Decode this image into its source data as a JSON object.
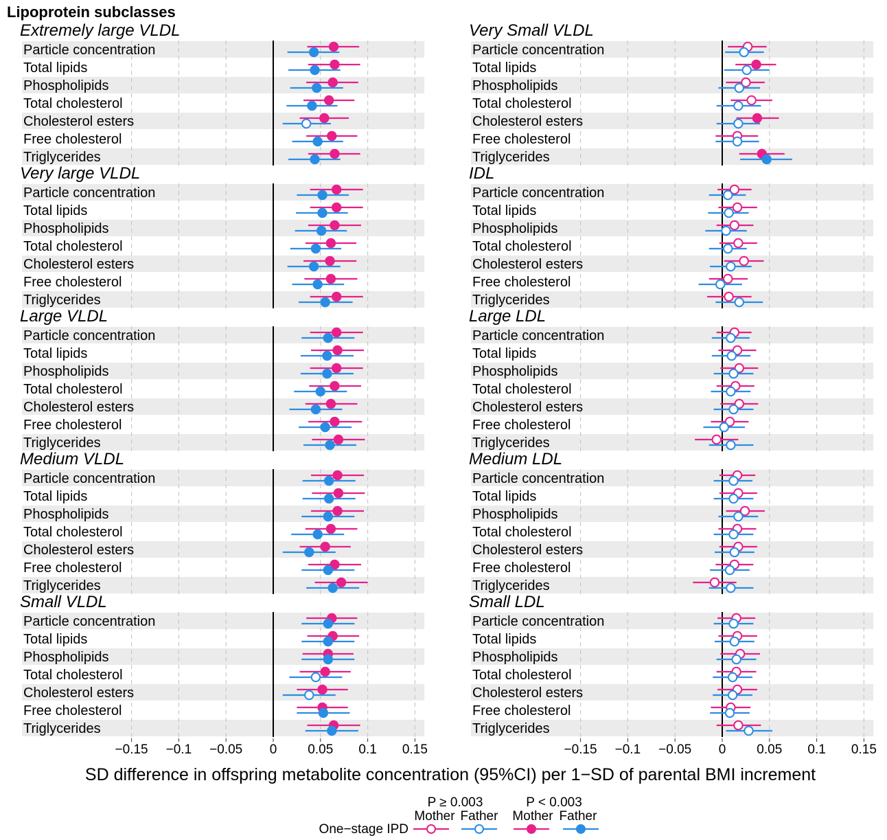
{
  "title": "Lipoprotein subclasses",
  "x_axis_label": "SD difference in offspring metabolite concentration (95%CI) per 1−SD of parental BMI increment",
  "legend": {
    "group_title": "One−stage IPD",
    "header_nonsig": "P ≥ 0.003",
    "header_sig": "P < 0.003",
    "mother": "Mother",
    "father": "Father"
  },
  "colors": {
    "mother": "#e8208a",
    "father": "#2a8de4",
    "stripe": "#ebebeb",
    "grid": "#c8c8c8",
    "zero": "#000000"
  },
  "chart_data": {
    "type": "forest",
    "xlim": [
      -0.15,
      0.16
    ],
    "x_ticks": [
      -0.15,
      -0.1,
      -0.05,
      0,
      0.05,
      0.1,
      0.15
    ],
    "x_tick_labels": [
      "−0.15",
      "−0.1",
      "−0.05",
      "0",
      "0.05",
      "0.1",
      "0.15"
    ],
    "grid": "dashed vertical",
    "rows": [
      "Particle concentration",
      "Total lipids",
      "Phospholipids",
      "Total cholesterol",
      "Cholesterol esters",
      "Free cholesterol",
      "Triglycerides"
    ],
    "panels": [
      {
        "title": "Extremely large VLDL",
        "mother": [
          [
            0.064,
            0.036,
            0.091,
            1
          ],
          [
            0.065,
            0.037,
            0.092,
            1
          ],
          [
            0.063,
            0.035,
            0.09,
            1
          ],
          [
            0.059,
            0.032,
            0.086,
            1
          ],
          [
            0.054,
            0.028,
            0.08,
            1
          ],
          [
            0.062,
            0.035,
            0.089,
            1
          ],
          [
            0.065,
            0.037,
            0.092,
            1
          ]
        ],
        "father": [
          [
            0.043,
            0.015,
            0.07,
            1
          ],
          [
            0.044,
            0.016,
            0.071,
            1
          ],
          [
            0.046,
            0.018,
            0.074,
            1
          ],
          [
            0.041,
            0.014,
            0.068,
            1
          ],
          [
            0.035,
            0.01,
            0.061,
            0
          ],
          [
            0.047,
            0.02,
            0.074,
            1
          ],
          [
            0.044,
            0.016,
            0.071,
            1
          ]
        ]
      },
      {
        "title": "Very Small VLDL",
        "mother": [
          [
            0.027,
            0.006,
            0.047,
            0
          ],
          [
            0.036,
            0.014,
            0.057,
            1
          ],
          [
            0.025,
            0.004,
            0.045,
            0
          ],
          [
            0.031,
            0.009,
            0.053,
            0
          ],
          [
            0.037,
            0.015,
            0.06,
            1
          ],
          [
            0.016,
            -0.007,
            0.038,
            0
          ],
          [
            0.042,
            0.018,
            0.066,
            1
          ]
        ],
        "father": [
          [
            0.023,
            0.003,
            0.044,
            0
          ],
          [
            0.026,
            0.002,
            0.05,
            0
          ],
          [
            0.018,
            -0.004,
            0.04,
            0
          ],
          [
            0.017,
            -0.006,
            0.041,
            0
          ],
          [
            0.017,
            -0.006,
            0.04,
            0
          ],
          [
            0.016,
            -0.007,
            0.039,
            0
          ],
          [
            0.047,
            0.019,
            0.074,
            1
          ]
        ]
      },
      {
        "title": "Very large VLDL",
        "mother": [
          [
            0.067,
            0.039,
            0.095,
            1
          ],
          [
            0.067,
            0.039,
            0.095,
            1
          ],
          [
            0.065,
            0.037,
            0.093,
            1
          ],
          [
            0.061,
            0.034,
            0.088,
            1
          ],
          [
            0.06,
            0.032,
            0.088,
            1
          ],
          [
            0.061,
            0.033,
            0.089,
            1
          ],
          [
            0.067,
            0.039,
            0.095,
            1
          ]
        ],
        "father": [
          [
            0.052,
            0.025,
            0.08,
            1
          ],
          [
            0.052,
            0.024,
            0.079,
            1
          ],
          [
            0.051,
            0.023,
            0.078,
            1
          ],
          [
            0.045,
            0.018,
            0.072,
            1
          ],
          [
            0.043,
            0.015,
            0.071,
            1
          ],
          [
            0.047,
            0.02,
            0.075,
            1
          ],
          [
            0.055,
            0.027,
            0.084,
            1
          ]
        ]
      },
      {
        "title": "IDL",
        "mother": [
          [
            0.013,
            -0.005,
            0.031,
            0
          ],
          [
            0.016,
            -0.004,
            0.037,
            0
          ],
          [
            0.013,
            -0.006,
            0.033,
            0
          ],
          [
            0.017,
            -0.003,
            0.037,
            0
          ],
          [
            0.023,
            0.002,
            0.044,
            0
          ],
          [
            0.006,
            -0.014,
            0.027,
            0
          ],
          [
            0.007,
            -0.016,
            0.031,
            0
          ]
        ],
        "father": [
          [
            0.006,
            -0.014,
            0.025,
            0
          ],
          [
            0.007,
            -0.015,
            0.028,
            0
          ],
          [
            0.004,
            -0.018,
            0.026,
            0
          ],
          [
            0.006,
            -0.014,
            0.026,
            0
          ],
          [
            0.009,
            -0.013,
            0.031,
            0
          ],
          [
            -0.002,
            -0.025,
            0.021,
            0
          ],
          [
            0.018,
            -0.007,
            0.043,
            0
          ]
        ]
      },
      {
        "title": "Large VLDL",
        "mother": [
          [
            0.067,
            0.039,
            0.095,
            1
          ],
          [
            0.068,
            0.04,
            0.096,
            1
          ],
          [
            0.067,
            0.039,
            0.095,
            1
          ],
          [
            0.065,
            0.038,
            0.093,
            1
          ],
          [
            0.061,
            0.034,
            0.089,
            1
          ],
          [
            0.065,
            0.037,
            0.094,
            1
          ],
          [
            0.069,
            0.041,
            0.097,
            1
          ]
        ],
        "father": [
          [
            0.058,
            0.03,
            0.086,
            1
          ],
          [
            0.057,
            0.029,
            0.085,
            1
          ],
          [
            0.057,
            0.029,
            0.085,
            1
          ],
          [
            0.05,
            0.022,
            0.078,
            1
          ],
          [
            0.045,
            0.017,
            0.073,
            1
          ],
          [
            0.055,
            0.027,
            0.083,
            1
          ],
          [
            0.06,
            0.032,
            0.088,
            1
          ]
        ]
      },
      {
        "title": "Large LDL",
        "mother": [
          [
            0.013,
            -0.006,
            0.031,
            0
          ],
          [
            0.016,
            -0.004,
            0.036,
            0
          ],
          [
            0.018,
            -0.002,
            0.038,
            0
          ],
          [
            0.014,
            -0.006,
            0.034,
            0
          ],
          [
            0.018,
            -0.002,
            0.038,
            0
          ],
          [
            0.008,
            -0.012,
            0.028,
            0
          ],
          [
            -0.006,
            -0.029,
            0.017,
            0
          ]
        ],
        "father": [
          [
            0.009,
            -0.011,
            0.029,
            0
          ],
          [
            0.01,
            -0.011,
            0.03,
            0
          ],
          [
            0.012,
            -0.009,
            0.033,
            0
          ],
          [
            0.009,
            -0.012,
            0.03,
            0
          ],
          [
            0.012,
            -0.009,
            0.033,
            0
          ],
          [
            0.002,
            -0.02,
            0.024,
            0
          ],
          [
            0.009,
            -0.014,
            0.033,
            0
          ]
        ]
      },
      {
        "title": "Medium VLDL",
        "mother": [
          [
            0.068,
            0.04,
            0.096,
            1
          ],
          [
            0.069,
            0.041,
            0.097,
            1
          ],
          [
            0.068,
            0.04,
            0.096,
            1
          ],
          [
            0.061,
            0.034,
            0.089,
            1
          ],
          [
            0.055,
            0.028,
            0.082,
            1
          ],
          [
            0.065,
            0.037,
            0.093,
            1
          ],
          [
            0.072,
            0.044,
            0.1,
            1
          ]
        ],
        "father": [
          [
            0.059,
            0.031,
            0.087,
            1
          ],
          [
            0.059,
            0.031,
            0.087,
            1
          ],
          [
            0.058,
            0.03,
            0.086,
            1
          ],
          [
            0.047,
            0.019,
            0.075,
            1
          ],
          [
            0.038,
            0.01,
            0.066,
            1
          ],
          [
            0.058,
            0.03,
            0.086,
            1
          ],
          [
            0.063,
            0.035,
            0.091,
            1
          ]
        ]
      },
      {
        "title": "Medium LDL",
        "mother": [
          [
            0.016,
            -0.003,
            0.035,
            0
          ],
          [
            0.017,
            -0.003,
            0.037,
            0
          ],
          [
            0.024,
            0.004,
            0.045,
            0
          ],
          [
            0.016,
            -0.004,
            0.036,
            0
          ],
          [
            0.017,
            -0.003,
            0.037,
            0
          ],
          [
            0.013,
            -0.007,
            0.033,
            0
          ],
          [
            -0.008,
            -0.031,
            0.015,
            0
          ]
        ],
        "father": [
          [
            0.012,
            -0.009,
            0.032,
            0
          ],
          [
            0.012,
            -0.009,
            0.033,
            0
          ],
          [
            0.017,
            -0.004,
            0.038,
            0
          ],
          [
            0.012,
            -0.009,
            0.033,
            0
          ],
          [
            0.013,
            -0.008,
            0.034,
            0
          ],
          [
            0.008,
            -0.013,
            0.029,
            0
          ],
          [
            0.009,
            -0.014,
            0.033,
            0
          ]
        ]
      },
      {
        "title": "Small VLDL",
        "mother": [
          [
            0.062,
            0.035,
            0.089,
            1
          ],
          [
            0.063,
            0.036,
            0.091,
            1
          ],
          [
            0.058,
            0.031,
            0.085,
            1
          ],
          [
            0.055,
            0.028,
            0.082,
            1
          ],
          [
            0.052,
            0.025,
            0.079,
            1
          ],
          [
            0.052,
            0.025,
            0.079,
            1
          ],
          [
            0.064,
            0.036,
            0.092,
            1
          ]
        ],
        "father": [
          [
            0.058,
            0.03,
            0.086,
            1
          ],
          [
            0.058,
            0.03,
            0.086,
            1
          ],
          [
            0.058,
            0.03,
            0.086,
            1
          ],
          [
            0.045,
            0.017,
            0.073,
            0
          ],
          [
            0.038,
            0.01,
            0.066,
            0
          ],
          [
            0.053,
            0.025,
            0.081,
            1
          ],
          [
            0.062,
            0.034,
            0.09,
            1
          ]
        ]
      },
      {
        "title": "Small LDL",
        "mother": [
          [
            0.015,
            -0.005,
            0.035,
            0
          ],
          [
            0.016,
            -0.004,
            0.037,
            0
          ],
          [
            0.019,
            -0.002,
            0.04,
            0
          ],
          [
            0.015,
            -0.006,
            0.036,
            0
          ],
          [
            0.016,
            -0.005,
            0.037,
            0
          ],
          [
            0.009,
            -0.012,
            0.03,
            0
          ],
          [
            0.017,
            -0.006,
            0.041,
            0
          ]
        ],
        "father": [
          [
            0.012,
            -0.009,
            0.033,
            0
          ],
          [
            0.013,
            -0.008,
            0.034,
            0
          ],
          [
            0.015,
            -0.006,
            0.036,
            0
          ],
          [
            0.011,
            -0.01,
            0.032,
            0
          ],
          [
            0.011,
            -0.01,
            0.032,
            0
          ],
          [
            0.008,
            -0.013,
            0.029,
            0
          ],
          [
            0.028,
            0.004,
            0.053,
            0
          ]
        ]
      }
    ]
  }
}
